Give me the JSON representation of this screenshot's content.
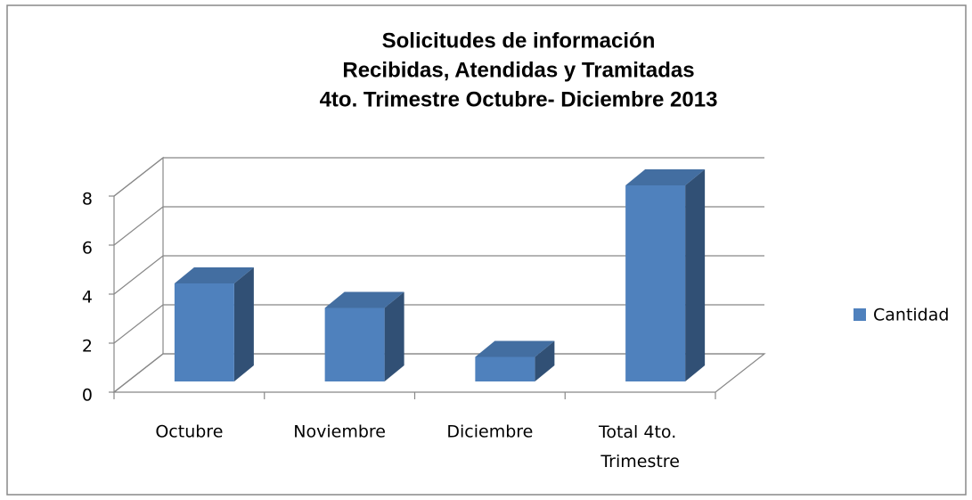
{
  "chart_data": {
    "type": "bar",
    "title": [
      "Solicitudes de información",
      "Recibidas, Atendidas y Tramitadas",
      "4to. Trimestre Octubre- Diciembre 2013"
    ],
    "categories": [
      "Octubre",
      "Noviembre",
      "Diciembre",
      "Total 4to. Trimestre"
    ],
    "series": [
      {
        "name": "Cantidad",
        "color": "#4f81bd",
        "values": [
          4,
          3,
          1,
          8
        ]
      }
    ],
    "ylim": [
      0,
      8
    ],
    "yticks": [
      0,
      2,
      4,
      6,
      8
    ],
    "grid": true,
    "legend": "right"
  }
}
